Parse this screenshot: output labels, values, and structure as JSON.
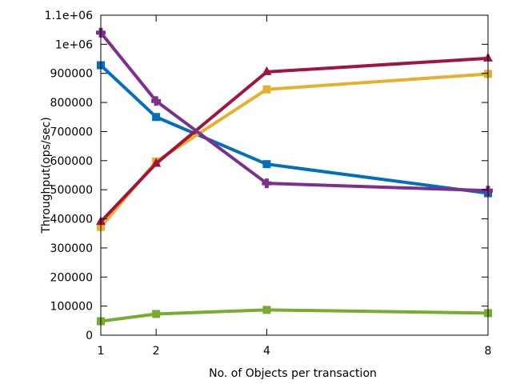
{
  "chart_data": {
    "type": "line",
    "title": "",
    "xlabel": "No. of Objects per transaction",
    "ylabel": "Throughput(ops/sec)",
    "x": [
      1,
      2,
      4,
      8
    ],
    "xlim": [
      1,
      8
    ],
    "ylim": [
      0,
      1100000
    ],
    "x_ticks": [
      1,
      2,
      4,
      8
    ],
    "x_tick_labels": [
      "1",
      "2",
      "4",
      "8"
    ],
    "y_ticks": [
      0,
      100000,
      200000,
      300000,
      400000,
      500000,
      600000,
      700000,
      800000,
      900000,
      1000000,
      1100000
    ],
    "y_tick_labels": [
      "0",
      "100000",
      "200000",
      "300000",
      "400000",
      "500000",
      "600000",
      "700000",
      "800000",
      "900000",
      "1e+06",
      "1.1e+06"
    ],
    "grid": false,
    "legend": "none",
    "series": [
      {
        "color": "#006fbd",
        "marker": "square",
        "values": [
          928000,
          750000,
          588000,
          488000
        ]
      },
      {
        "color": "#e6b02e",
        "marker": "square",
        "values": [
          372000,
          597000,
          845000,
          898000
        ]
      },
      {
        "color": "#a0143d",
        "marker": "triangle",
        "values": [
          390000,
          590000,
          905000,
          952000
        ]
      },
      {
        "color": "#7e2f8e",
        "marker": "cross",
        "values": [
          1040000,
          805000,
          522000,
          497000
        ]
      },
      {
        "color": "#77ac30",
        "marker": "square",
        "values": [
          48000,
          73000,
          87000,
          76000
        ]
      }
    ]
  }
}
